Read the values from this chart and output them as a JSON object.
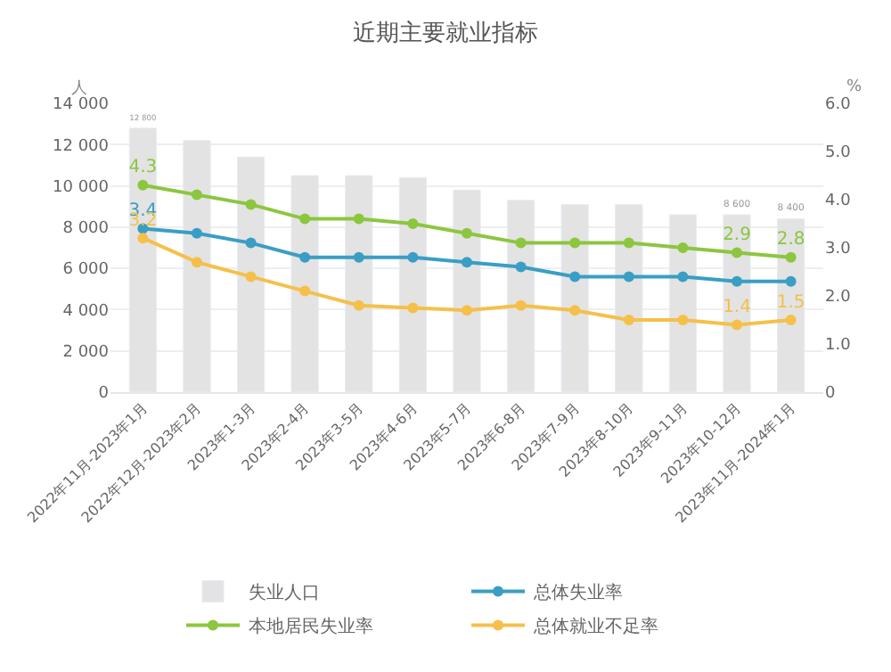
{
  "chart_data": {
    "type": "bar",
    "title": "近期主要就业指标",
    "ylabel": "人",
    "y2label": "%",
    "categories": [
      "2022年11月-2023年1月",
      "2022年12月-2023年2月",
      "2023年1-3月",
      "2023年2-4月",
      "2023年3-5月",
      "2023年4-6月",
      "2023年5-7月",
      "2023年6-8月",
      "2023年7-9月",
      "2023年8-10月",
      "2023年9-11月",
      "2023年10-12月",
      "2023年11月-2024年1月"
    ],
    "series": [
      {
        "name": "失业人口",
        "color": "#e3e3e3",
        "values": [
          12800,
          12200,
          11400,
          10500,
          10500,
          10400,
          9800,
          9300,
          9100,
          9100,
          8600,
          8600,
          8400
        ],
        "value_labels": [
          "12 800",
          null,
          null,
          null,
          null,
          null,
          null,
          null,
          null,
          null,
          null,
          "8 600",
          "8 400"
        ]
      },
      {
        "name": "总体失业率",
        "type": "line",
        "axis": "y2",
        "color": "#3a9ec4",
        "values": [
          3.4,
          3.3,
          3.1,
          2.8,
          2.8,
          2.8,
          2.7,
          2.6,
          2.4,
          2.4,
          2.4,
          2.3,
          2.3
        ],
        "value_labels": [
          "3.4",
          null,
          null,
          null,
          null,
          null,
          null,
          null,
          null,
          null,
          null,
          null,
          null
        ]
      },
      {
        "name": "本地居民失业率",
        "type": "line",
        "axis": "y2",
        "color": "#8cc63f",
        "values": [
          4.3,
          4.1,
          3.9,
          3.6,
          3.6,
          3.5,
          3.3,
          3.1,
          3.1,
          3.1,
          3.0,
          2.9,
          2.8
        ],
        "value_labels": [
          "4.3",
          null,
          null,
          null,
          null,
          null,
          null,
          null,
          null,
          null,
          null,
          "2.9",
          "2.8"
        ]
      },
      {
        "name": "总体就业不足率",
        "type": "line",
        "axis": "y2",
        "color": "#f5c04a",
        "values": [
          3.2,
          2.7,
          2.4,
          2.1,
          1.8,
          1.75,
          1.7,
          1.8,
          1.7,
          1.5,
          1.5,
          1.4,
          1.5
        ],
        "value_labels": [
          "3.2",
          null,
          null,
          null,
          null,
          null,
          null,
          null,
          null,
          null,
          null,
          "1.4",
          "1.5"
        ]
      }
    ],
    "ylim": [
      0,
      14000
    ],
    "yticks": [
      0,
      {
        "value": 2000,
        "label": "2 000"
      },
      {
        "value": 4000,
        "label": "4 000"
      },
      {
        "value": 6000,
        "label": "6 000"
      },
      {
        "value": 8000,
        "label": "8 000"
      },
      {
        "value": 10000,
        "label": "10 000"
      },
      {
        "value": 12000,
        "label": "12 000"
      },
      {
        "value": 14000,
        "label": "14 000"
      }
    ],
    "y2lim": [
      0,
      6
    ],
    "y2ticks": [
      0,
      {
        "value": 1,
        "label": "1.0"
      },
      {
        "value": 2,
        "label": "2.0"
      },
      {
        "value": 3,
        "label": "3.0"
      },
      {
        "value": 4,
        "label": "4.0"
      },
      {
        "value": 5,
        "label": "5.0"
      },
      {
        "value": 6,
        "label": "6.0"
      }
    ],
    "grid": "y",
    "legend": "bottom",
    "marker": "circle",
    "line_style": "solid"
  }
}
